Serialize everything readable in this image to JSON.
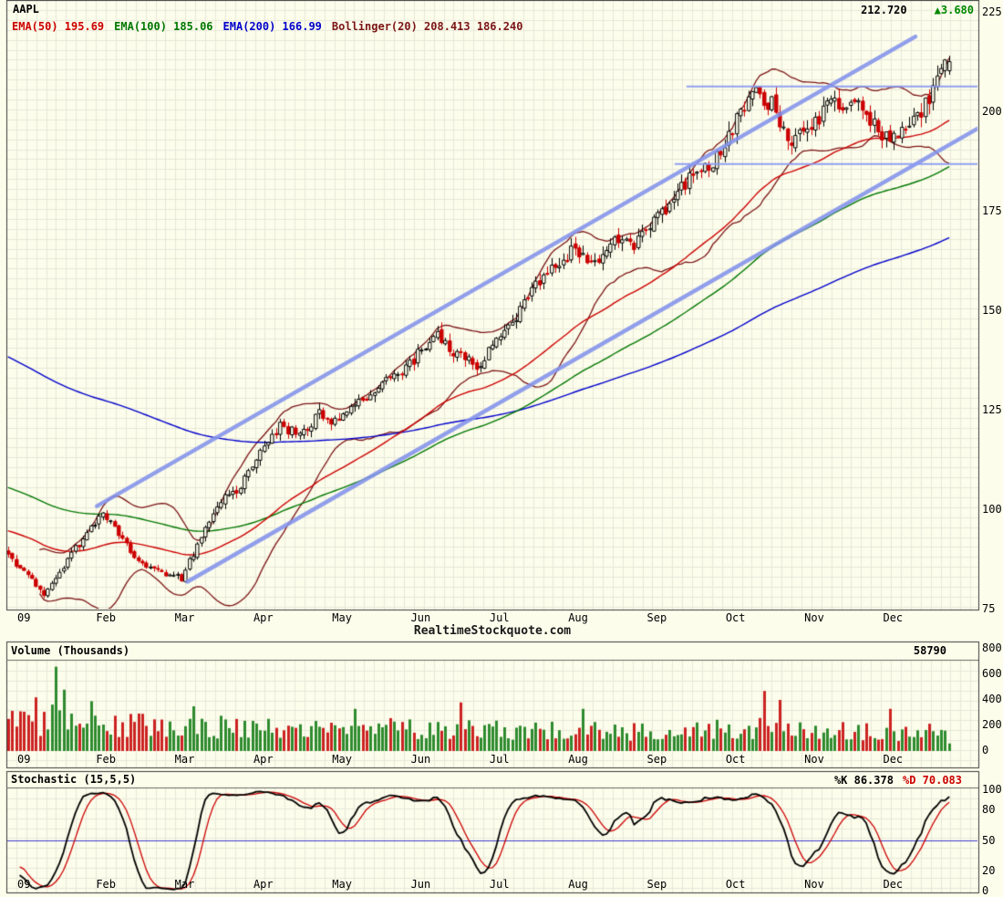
{
  "header": {
    "symbol": "AAPL",
    "last_price": "212.720",
    "change": "▲3.680",
    "change_color": "#008800"
  },
  "legend": [
    {
      "label": "EMA(50)",
      "value": "195.69",
      "color": "#cc0000"
    },
    {
      "label": "EMA(100)",
      "value": "185.06",
      "color": "#007700"
    },
    {
      "label": "EMA(200)",
      "value": "166.99",
      "color": "#0000cc"
    },
    {
      "label": "Bollinger(20)",
      "value": "208.413 186.240",
      "color": "#7b1515"
    }
  ],
  "watermark": "RealtimeStockquote.com",
  "axes": {
    "months": [
      "09",
      "Feb",
      "Mar",
      "Apr",
      "May",
      "Jun",
      "Jul",
      "Aug",
      "Sep",
      "Oct",
      "Nov",
      "Dec"
    ],
    "price_ticks": [
      225,
      200,
      175,
      150,
      125,
      100,
      75
    ],
    "volume_ticks": [
      800,
      600,
      400,
      200,
      0
    ],
    "stoch_ticks": [
      100,
      80,
      50,
      20,
      0
    ]
  },
  "volume_panel": {
    "title": "Volume (Thousands)",
    "current": "58790"
  },
  "stoch_panel": {
    "title": "Stochastic (15,5,5)",
    "k_text": "%K 86.378",
    "d_text": "%D 70.083"
  },
  "chart_data": {
    "type": "candlestick",
    "title": "AAPL daily chart, Jan 2009 (09) through Dec 2009",
    "ylim": [
      75,
      225
    ],
    "price_tick_step": 25,
    "x_months": [
      "09",
      "Feb",
      "Mar",
      "Apr",
      "May",
      "Jun",
      "Jul",
      "Aug",
      "Sep",
      "Oct",
      "Nov",
      "Dec"
    ],
    "weekly_close_anchors": [
      90,
      84,
      79,
      86,
      93,
      100,
      92,
      86,
      84,
      83,
      93,
      102,
      106,
      115,
      121,
      119,
      124,
      122,
      127,
      131,
      134,
      139,
      144,
      139,
      136,
      142,
      149,
      157,
      161,
      166,
      161,
      167,
      166,
      172,
      179,
      184,
      187,
      196,
      205,
      202,
      192,
      197,
      202,
      203,
      198,
      192,
      196,
      204,
      212.72
    ],
    "last_close": 212.72,
    "change": 3.68,
    "indicators": {
      "ema50": {
        "period": 50,
        "last": 195.69,
        "start_estimate": 95,
        "color": "#cc0000"
      },
      "ema100": {
        "period": 100,
        "last": 185.06,
        "start_estimate": 106,
        "color": "#007700"
      },
      "ema200": {
        "period": 200,
        "last": 166.99,
        "start_estimate": 139,
        "color": "#0000cc"
      },
      "bollinger20": {
        "period": 20,
        "upper_last": 208.413,
        "lower_last": 186.24,
        "color": "#7b1515"
      }
    },
    "trend_channel": {
      "color": "#8292ea",
      "lines": [
        {
          "x1_month": 1.15,
          "price1": 101,
          "x2_month": 11.55,
          "price2": 219
        },
        {
          "x1_month": 2.3,
          "price1": 82,
          "x2_month": 12.35,
          "price2": 196
        }
      ]
    },
    "horizontal_levels": {
      "color": "#8a9af0",
      "lines": [
        {
          "price": 206.5,
          "x1_month": 8.65,
          "x2_month": 12.35
        },
        {
          "price": 187.0,
          "x1_month": 8.5,
          "x2_month": 12.35
        }
      ]
    },
    "volume": {
      "unit": "thousands",
      "range": [
        0,
        800
      ],
      "current": 58790,
      "current_bar": 59,
      "monthly_base": [
        225,
        205,
        195,
        185,
        180,
        172,
        168,
        158,
        162,
        178,
        162,
        150
      ],
      "spikes": [
        [
          0.33,
          420
        ],
        [
          0.6,
          660
        ],
        [
          0.72,
          480
        ],
        [
          1.05,
          390
        ],
        [
          2.35,
          350
        ],
        [
          4.4,
          330
        ],
        [
          5.75,
          380
        ],
        [
          7.3,
          330
        ],
        [
          9.6,
          470
        ],
        [
          9.78,
          400
        ],
        [
          11.2,
          330
        ]
      ],
      "up_color": "#2e8b2e",
      "down_color": "#cc2222"
    },
    "stochastic": {
      "params": [
        15,
        5,
        5
      ],
      "k_last": 86.378,
      "d_last": 70.083,
      "range": [
        0,
        100
      ],
      "midline": 50,
      "k_color": "#000000",
      "d_color": "#cc0000",
      "midline_color": "#3b3bcc"
    },
    "style": {
      "background": "#fdfdec",
      "grid_color": "#e7e7d9",
      "border_color": "#3a3a3a",
      "candle_up_fill": "#fdfdec",
      "candle_up_stroke": "#000000",
      "candle_down": "#cc0000"
    }
  }
}
